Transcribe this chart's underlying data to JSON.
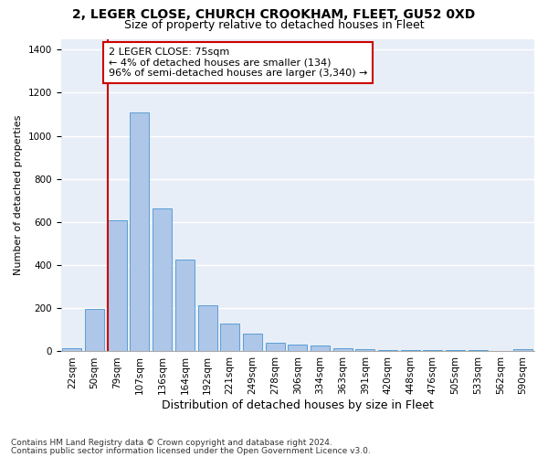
{
  "title1": "2, LEGER CLOSE, CHURCH CROOKHAM, FLEET, GU52 0XD",
  "title2": "Size of property relative to detached houses in Fleet",
  "xlabel": "Distribution of detached houses by size in Fleet",
  "ylabel": "Number of detached properties",
  "categories": [
    "22sqm",
    "50sqm",
    "79sqm",
    "107sqm",
    "136sqm",
    "164sqm",
    "192sqm",
    "221sqm",
    "249sqm",
    "278sqm",
    "306sqm",
    "334sqm",
    "363sqm",
    "391sqm",
    "420sqm",
    "448sqm",
    "476sqm",
    "505sqm",
    "533sqm",
    "562sqm",
    "590sqm"
  ],
  "values": [
    15,
    195,
    610,
    1110,
    665,
    425,
    215,
    130,
    83,
    38,
    30,
    28,
    15,
    10,
    5,
    5,
    5,
    5,
    5,
    3,
    10
  ],
  "bar_color": "#aec6e8",
  "bar_edge_color": "#5a9fd4",
  "property_line_x": 2,
  "annotation_text": "2 LEGER CLOSE: 75sqm\n← 4% of detached houses are smaller (134)\n96% of semi-detached houses are larger (3,340) →",
  "annotation_box_color": "#ffffff",
  "annotation_box_edge_color": "#cc0000",
  "vline_color": "#cc0000",
  "bg_color": "#e8eef8",
  "grid_color": "#ffffff",
  "footer1": "Contains HM Land Registry data © Crown copyright and database right 2024.",
  "footer2": "Contains public sector information licensed under the Open Government Licence v3.0.",
  "ylim": [
    0,
    1450
  ],
  "title1_fontsize": 10,
  "title2_fontsize": 9,
  "xlabel_fontsize": 9,
  "ylabel_fontsize": 8,
  "tick_fontsize": 7.5,
  "annot_fontsize": 8,
  "footer_fontsize": 6.5
}
